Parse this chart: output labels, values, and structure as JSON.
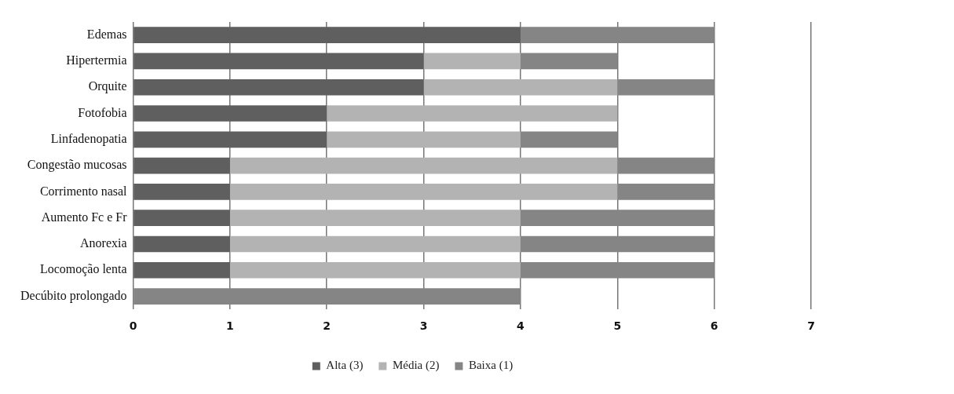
{
  "chart_data": {
    "type": "bar",
    "orientation": "horizontal",
    "stacked": true,
    "categories": [
      "Edemas",
      "Hipertermia",
      "Orquite",
      "Fotofobia",
      "Linfadenopatia",
      "Congestão mucosas",
      "Corrimento nasal",
      "Aumento Fc e Fr",
      "Anorexia",
      "Locomoção lenta",
      "Decúbito prolongado"
    ],
    "series": [
      {
        "name": "Alta (3)",
        "color": "#5f5f5f",
        "values": [
          4,
          3,
          3,
          2,
          2,
          1,
          1,
          1,
          1,
          1,
          0
        ]
      },
      {
        "name": "Média (2)",
        "color": "#b3b3b3",
        "values": [
          0,
          1,
          2,
          3,
          2,
          4,
          4,
          3,
          3,
          3,
          0
        ]
      },
      {
        "name": "Baixa (1)",
        "color": "#858585",
        "values": [
          2,
          1,
          1,
          0,
          1,
          1,
          1,
          2,
          2,
          2,
          4
        ]
      }
    ],
    "xlim": [
      0,
      7
    ],
    "xticks": [
      0,
      1,
      2,
      3,
      4,
      5,
      6,
      7
    ],
    "grid": "x",
    "legend": "bottom"
  }
}
